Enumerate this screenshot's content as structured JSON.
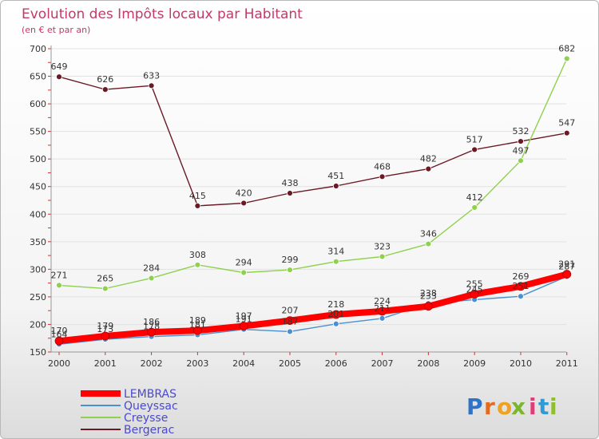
{
  "chart_data": {
    "type": "line",
    "title": "Evolution des Impôts locaux par Habitant",
    "subtitle": "(en € et par an)",
    "xlabel": "",
    "ylabel": "",
    "ylim": [
      150,
      700
    ],
    "yticks": [
      "150",
      "200",
      "250",
      "300",
      "350",
      "400",
      "450",
      "500",
      "550",
      "600",
      "650",
      "700"
    ],
    "categories": [
      "2000",
      "2001",
      "2002",
      "2003",
      "2004",
      "2005",
      "2006",
      "2007",
      "2008",
      "2009",
      "2010",
      "2011"
    ],
    "legend_position": "bottom-left",
    "series": [
      {
        "name": "LEMBRAS",
        "color": "#ff0000",
        "values": [
          170,
          179,
          186,
          189,
          197,
          207,
          218,
          224,
          233,
          255,
          269,
          291
        ],
        "labels": [
          "170",
          "179",
          "186",
          "189",
          "197",
          "207",
          "218",
          "224",
          "233",
          "255",
          "269",
          "291"
        ]
      },
      {
        "name": "Queyssac",
        "color": "#4a90d0",
        "values": [
          164,
          173,
          178,
          181,
          191,
          187,
          201,
          211,
          238,
          245,
          251,
          287
        ],
        "labels": [
          "164",
          "173",
          "178",
          "181",
          "191",
          "187",
          "201",
          "211",
          "238",
          "245",
          "251",
          "287"
        ]
      },
      {
        "name": "Creysse",
        "color": "#8fd14f",
        "values": [
          271,
          265,
          284,
          308,
          294,
          299,
          314,
          323,
          346,
          412,
          497,
          682
        ],
        "labels": [
          "271",
          "265",
          "284",
          "308",
          "294",
          "299",
          "314",
          "323",
          "346",
          "412",
          "497",
          "682"
        ]
      },
      {
        "name": "Bergerac",
        "color": "#6b1a24",
        "values": [
          649,
          626,
          633,
          415,
          420,
          438,
          451,
          468,
          482,
          517,
          532,
          547
        ],
        "labels": [
          "649",
          "626",
          "633",
          "415",
          "420",
          "438",
          "451",
          "468",
          "482",
          "517",
          "532",
          "547"
        ]
      }
    ]
  },
  "logo": {
    "text": "Proxiti",
    "letters": [
      "P",
      "r",
      "o",
      "x",
      "i",
      "t",
      "i"
    ]
  }
}
